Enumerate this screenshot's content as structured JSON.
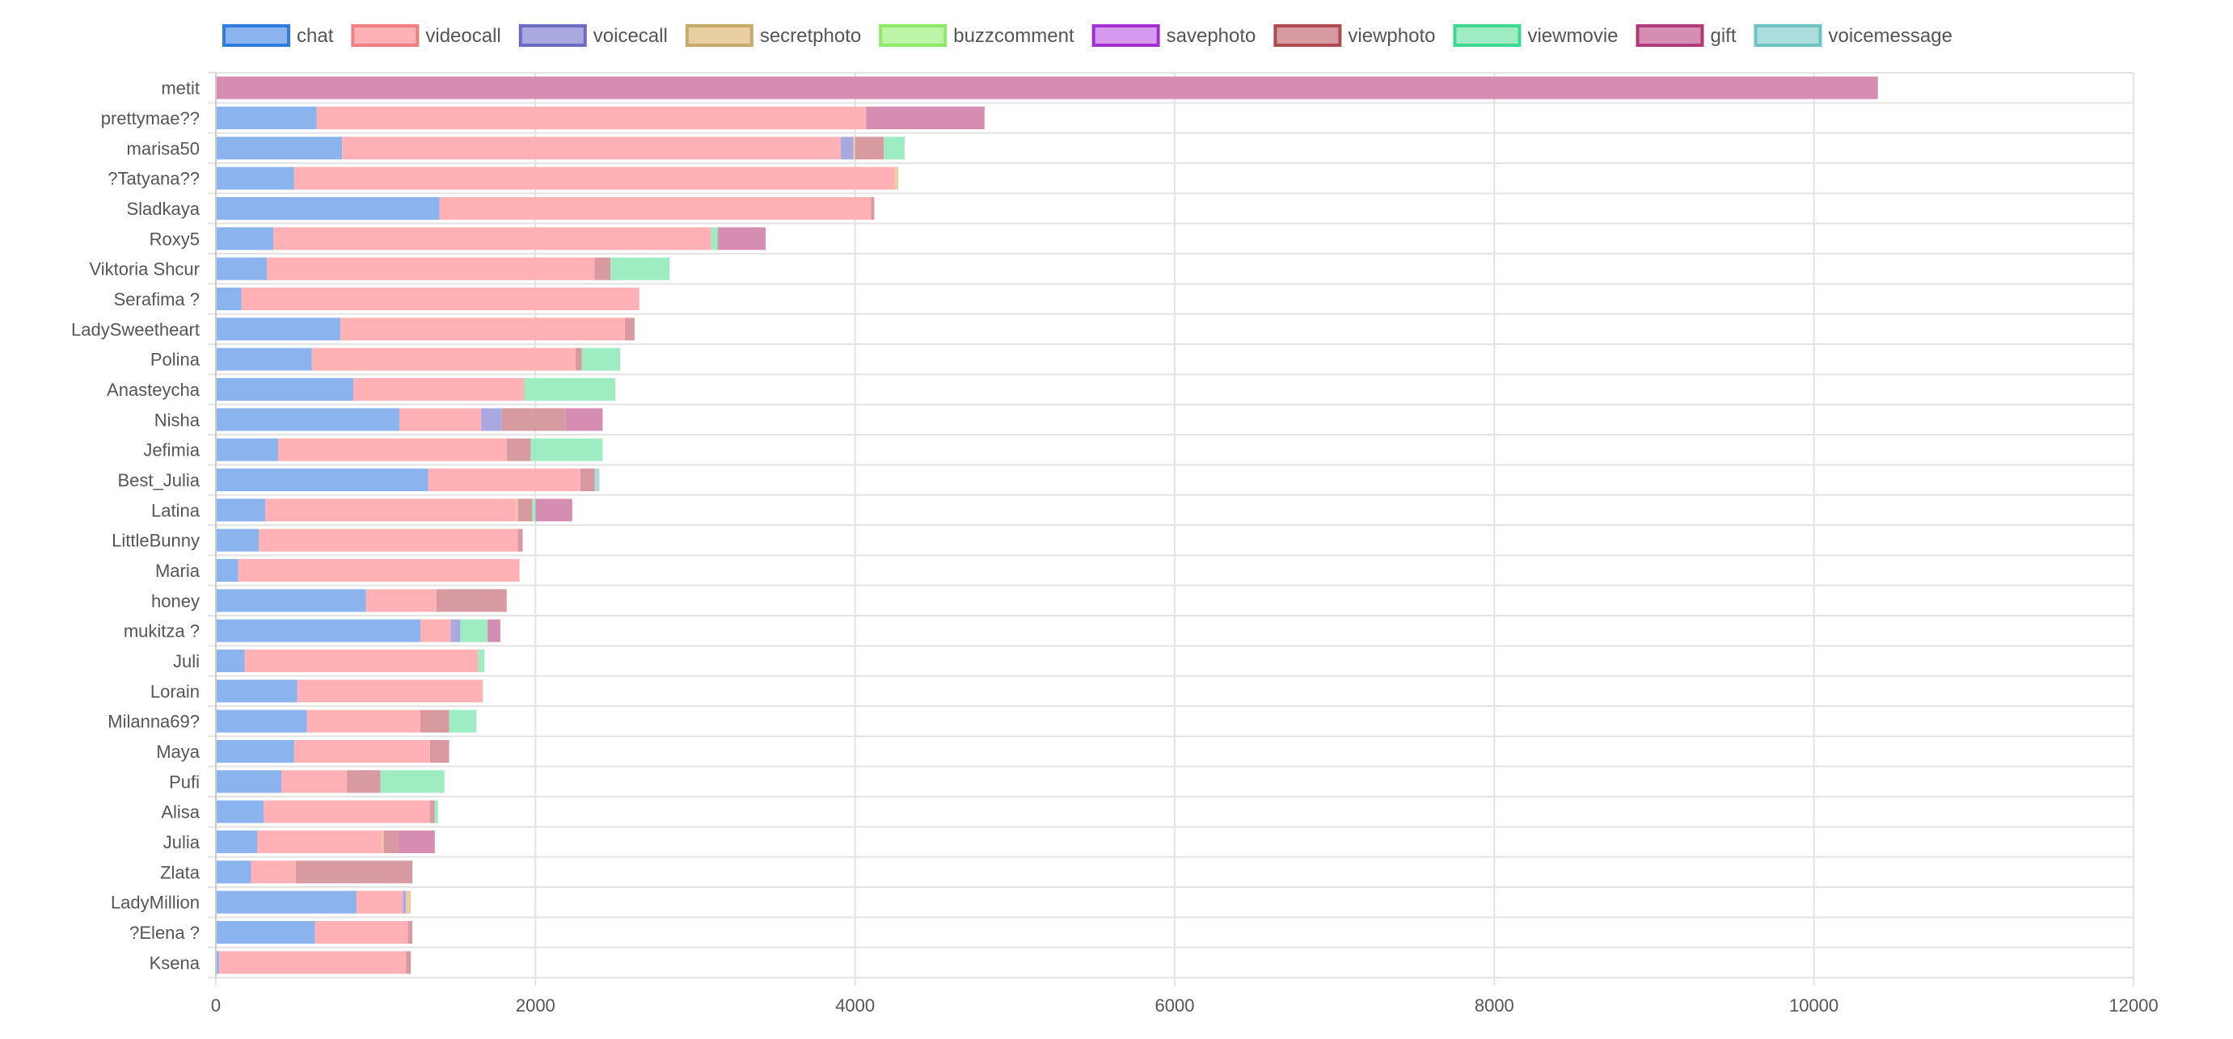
{
  "chart_data": {
    "type": "bar",
    "orientation": "horizontal",
    "stacked": true,
    "title": "",
    "xlabel": "",
    "ylabel": "",
    "xlim": [
      0,
      12000
    ],
    "x_ticks": [
      0,
      2000,
      4000,
      6000,
      8000,
      10000,
      12000
    ],
    "grid": true,
    "legend_position": "top",
    "categories": [
      "metit",
      "prettymae??",
      "marisa50",
      "?Tatyana??",
      "Sladkaya",
      "Roxy5",
      "Viktoria Shcur",
      "Serafima ?",
      "LadySweetheart",
      "Polina",
      "Anasteycha",
      "Nisha",
      "Jefimia",
      "Best_Julia",
      "Latina",
      "LittleBunny",
      "Maria",
      "honey",
      "mukitza ?",
      "Juli",
      "Lorain",
      "Milanna69?",
      "Maya",
      "Pufi",
      "Alisa",
      "Julia",
      "Zlata",
      "LadyMillion",
      "?Elena ?",
      "Ksena"
    ],
    "series": [
      {
        "name": "chat",
        "color": "#8BB4EE",
        "border": "#2F7BE0",
        "values": [
          0,
          630,
          790,
          490,
          1400,
          360,
          320,
          160,
          780,
          600,
          860,
          1150,
          390,
          1330,
          310,
          270,
          140,
          940,
          1280,
          180,
          510,
          570,
          490,
          410,
          300,
          260,
          220,
          880,
          620,
          20
        ]
      },
      {
        "name": "videocall",
        "color": "#FFB1B5",
        "border": "#F08080",
        "values": [
          0,
          3440,
          3120,
          3760,
          2700,
          2740,
          2050,
          2490,
          1780,
          1650,
          1070,
          510,
          1430,
          950,
          1570,
          1620,
          1760,
          440,
          190,
          1460,
          1160,
          710,
          850,
          410,
          1040,
          780,
          280,
          290,
          580,
          1170
        ]
      },
      {
        "name": "voicecall",
        "color": "#AAA8E0",
        "border": "#6B6BC0",
        "values": [
          0,
          0,
          80,
          0,
          0,
          0,
          0,
          0,
          0,
          0,
          0,
          130,
          0,
          0,
          0,
          0,
          0,
          0,
          60,
          0,
          0,
          0,
          0,
          0,
          0,
          0,
          0,
          20,
          0,
          0
        ]
      },
      {
        "name": "secretphoto",
        "color": "#E8CFA1",
        "border": "#C9A86B",
        "values": [
          0,
          0,
          10,
          20,
          0,
          0,
          0,
          0,
          0,
          0,
          0,
          0,
          0,
          0,
          10,
          0,
          0,
          0,
          0,
          0,
          0,
          0,
          0,
          0,
          0,
          10,
          0,
          30,
          0,
          0
        ]
      },
      {
        "name": "buzzcomment",
        "color": "#BDF5A8",
        "border": "#8EE86A",
        "values": [
          0,
          0,
          0,
          0,
          0,
          0,
          0,
          0,
          0,
          0,
          0,
          0,
          0,
          0,
          0,
          0,
          0,
          0,
          0,
          0,
          0,
          0,
          0,
          0,
          0,
          0,
          0,
          0,
          0,
          0
        ]
      },
      {
        "name": "savephoto",
        "color": "#D69AF0",
        "border": "#A030D0",
        "values": [
          0,
          0,
          0,
          0,
          0,
          0,
          0,
          0,
          0,
          0,
          0,
          0,
          0,
          0,
          0,
          0,
          0,
          0,
          0,
          0,
          0,
          0,
          0,
          0,
          0,
          0,
          0,
          0,
          0,
          0
        ]
      },
      {
        "name": "viewphoto",
        "color": "#D79AA0",
        "border": "#B04A52",
        "values": [
          0,
          0,
          180,
          0,
          20,
          0,
          100,
          0,
          60,
          40,
          0,
          400,
          150,
          90,
          90,
          30,
          0,
          440,
          0,
          0,
          0,
          180,
          120,
          210,
          30,
          90,
          730,
          0,
          30,
          30
        ]
      },
      {
        "name": "viewmovie",
        "color": "#9EEDC2",
        "border": "#40D890",
        "values": [
          0,
          0,
          130,
          0,
          0,
          40,
          370,
          0,
          0,
          240,
          570,
          0,
          450,
          0,
          20,
          0,
          0,
          0,
          170,
          40,
          0,
          170,
          0,
          400,
          20,
          0,
          0,
          0,
          0,
          0
        ]
      },
      {
        "name": "gift",
        "color": "#D58EB2",
        "border": "#B03A78",
        "values": [
          10400,
          740,
          0,
          0,
          0,
          300,
          0,
          0,
          0,
          0,
          0,
          230,
          0,
          0,
          230,
          0,
          0,
          0,
          80,
          0,
          0,
          0,
          0,
          0,
          0,
          230,
          0,
          0,
          0,
          0
        ]
      },
      {
        "name": "voicemessage",
        "color": "#ACDCDC",
        "border": "#6EC2C2",
        "values": [
          0,
          0,
          0,
          0,
          0,
          0,
          0,
          0,
          0,
          0,
          0,
          0,
          0,
          30,
          0,
          0,
          0,
          0,
          0,
          0,
          0,
          0,
          0,
          0,
          0,
          0,
          0,
          0,
          0,
          0
        ]
      }
    ]
  }
}
